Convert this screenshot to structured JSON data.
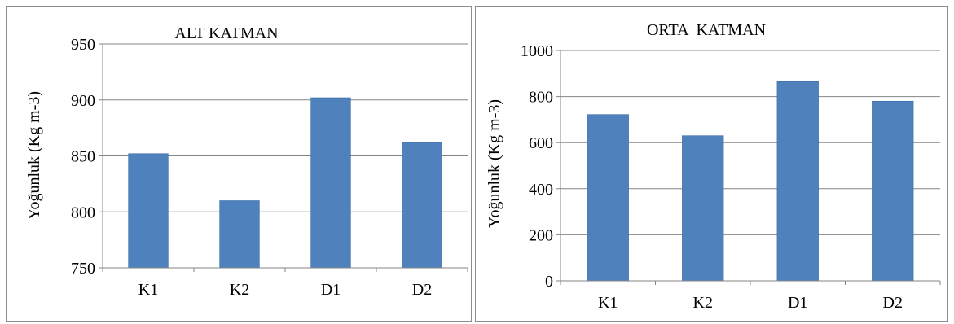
{
  "colors": {
    "bar": "#4f81bd",
    "bar_edge": "#3a6ea5",
    "gridline": "#868686",
    "axis": "#868686",
    "panel_border": "#8c8c8c"
  },
  "chart_data": [
    {
      "type": "bar",
      "title": "ALT KATMAN",
      "xlabel": "",
      "ylabel": "Yoğunluk (Kg m-3)",
      "categories": [
        "K1",
        "K2",
        "D1",
        "D2"
      ],
      "values": [
        852,
        810,
        902,
        862
      ],
      "ylim": [
        750,
        950
      ],
      "yticks": [
        750,
        800,
        850,
        900,
        950
      ],
      "ytick_labels": [
        "750",
        "800",
        "850",
        "900",
        "950"
      ],
      "grid": true,
      "legend": "none"
    },
    {
      "type": "bar",
      "title": "ORTA  KATMAN",
      "xlabel": "",
      "ylabel": "Yoğunluk (Kg m-3)",
      "categories": [
        "K1",
        "K2",
        "D1",
        "D2"
      ],
      "values": [
        722,
        630,
        865,
        780
      ],
      "ylim": [
        0,
        1000
      ],
      "yticks": [
        0,
        200,
        400,
        600,
        800,
        1000
      ],
      "ytick_labels": [
        "0",
        "200",
        "400",
        "600",
        "800",
        "1000"
      ],
      "grid": true,
      "legend": "none"
    }
  ]
}
